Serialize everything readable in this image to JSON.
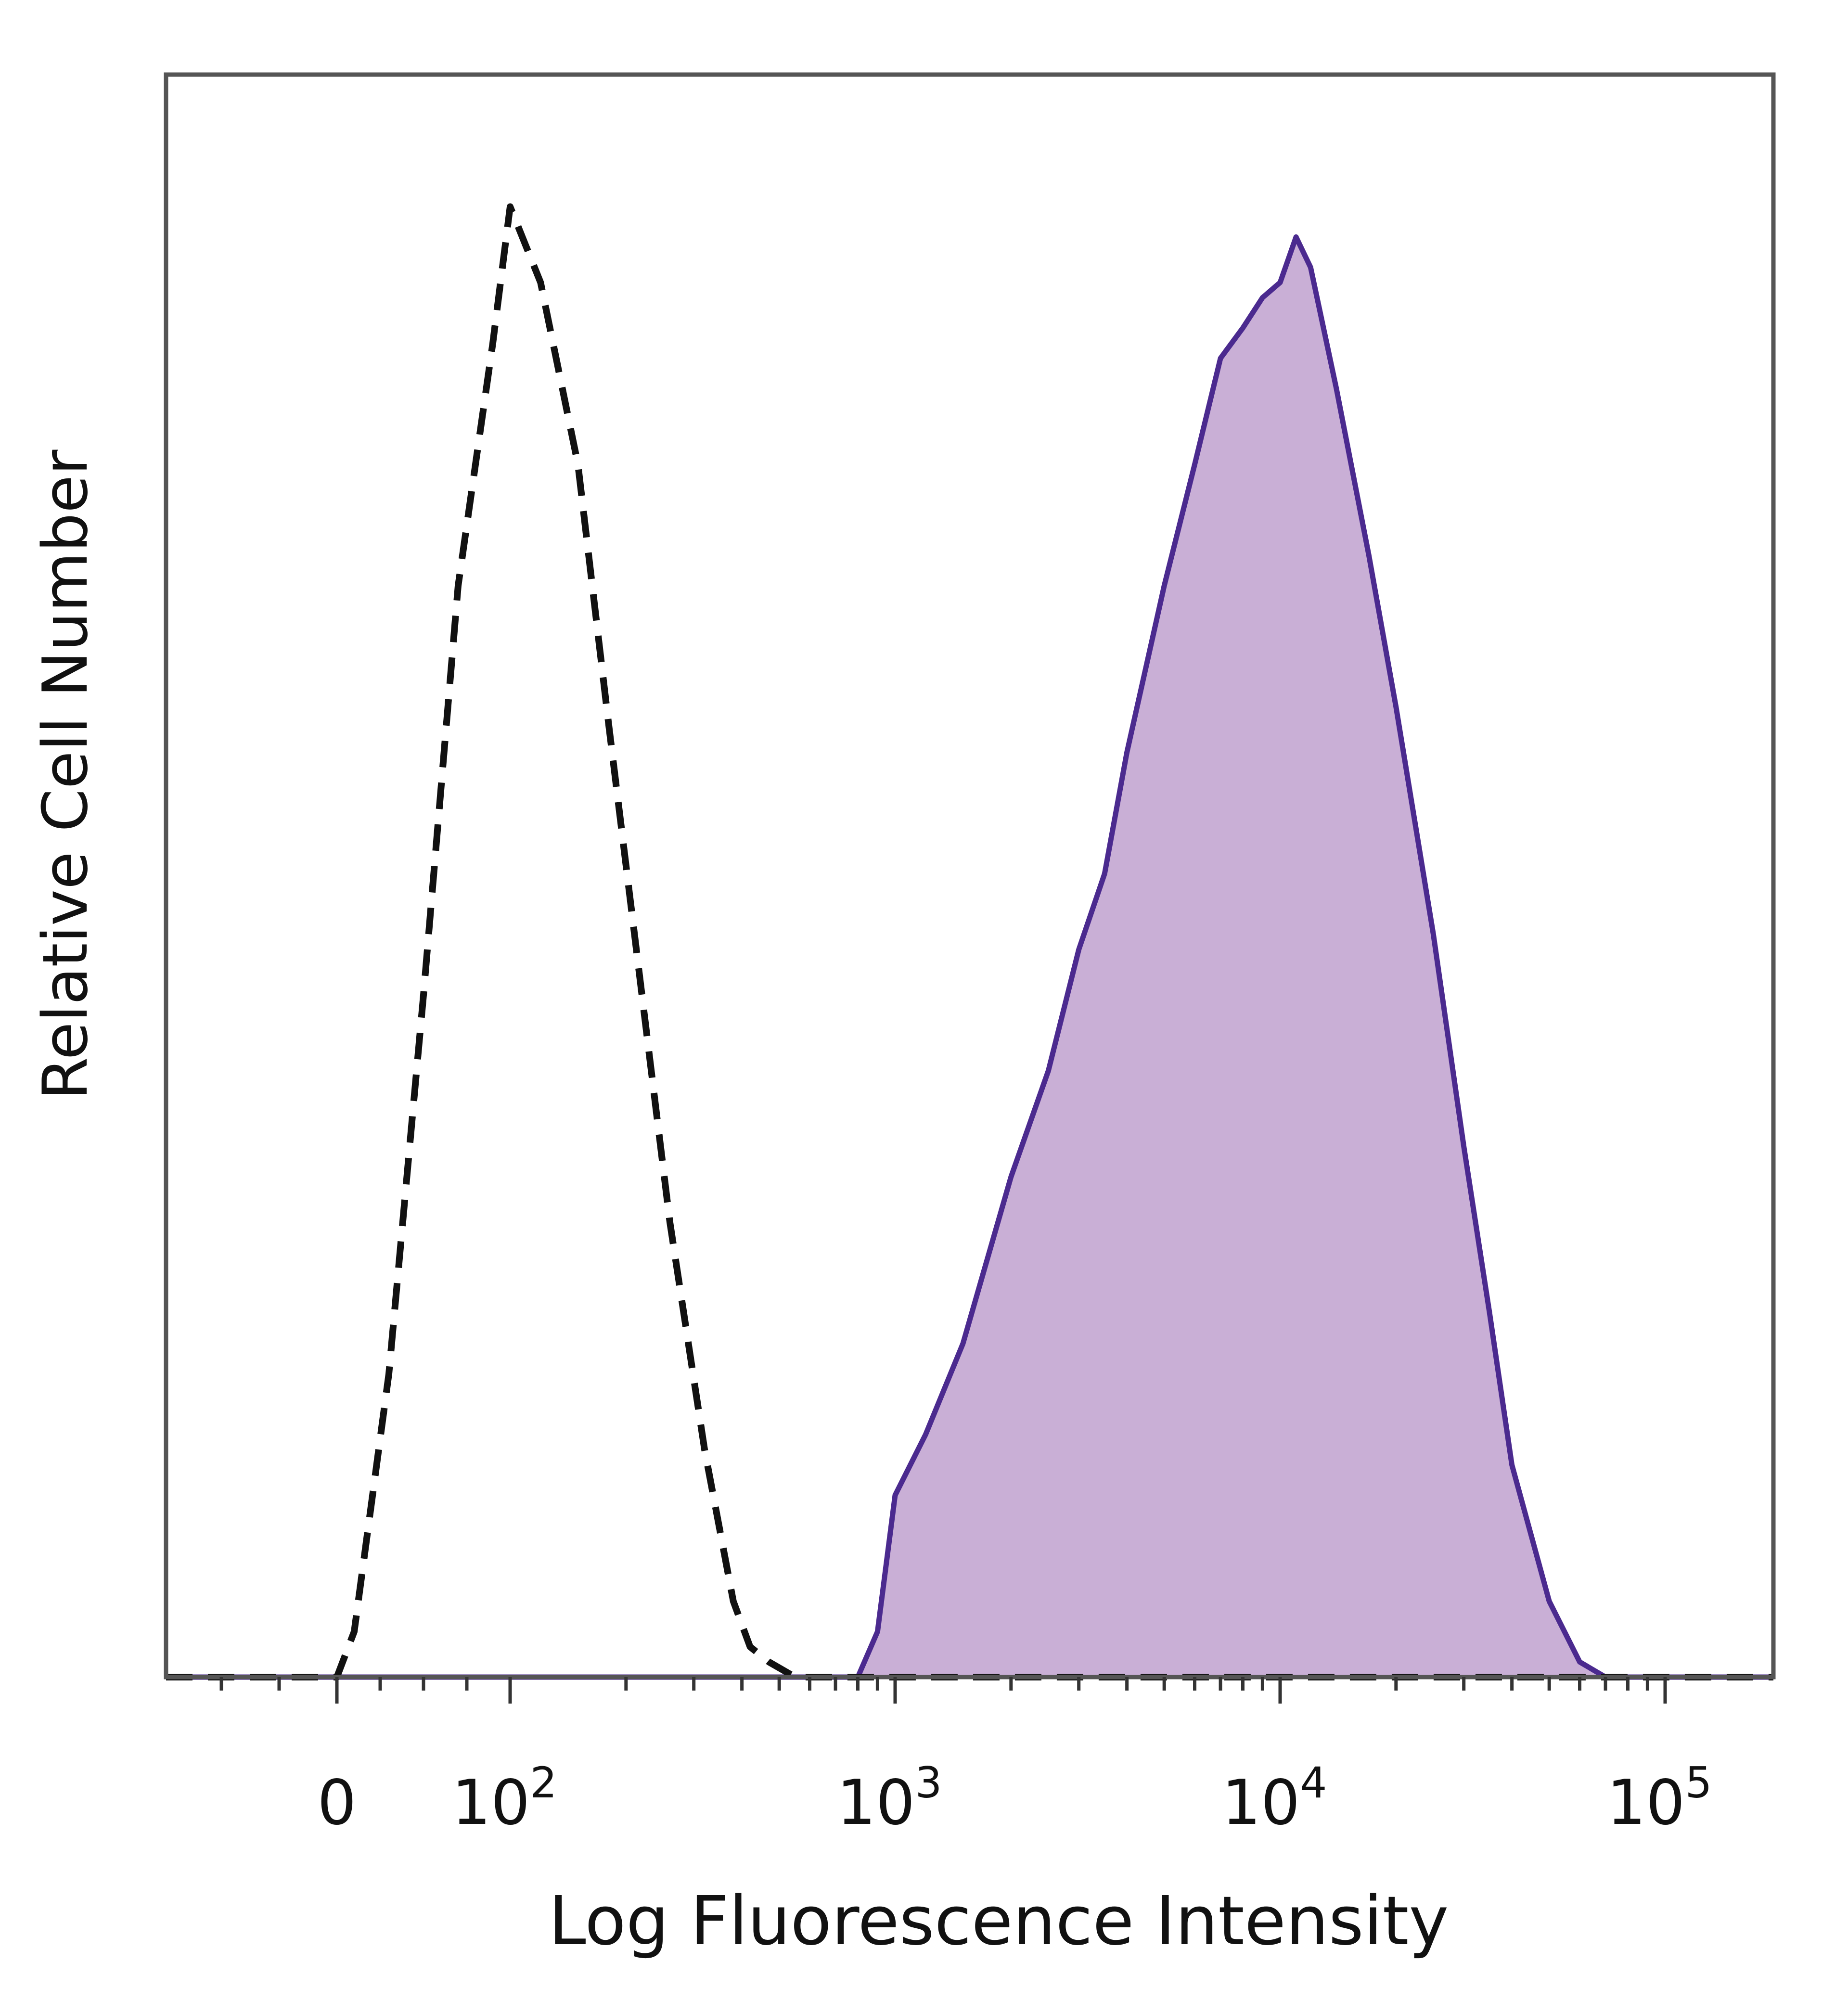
{
  "chart_data": {
    "type": "area",
    "title": "",
    "xlabel": "Log Fluorescence Intensity",
    "ylabel": "Relative Cell Number",
    "x_scale": "biexponential",
    "xlim": [
      -150,
      250000
    ],
    "ylim": [
      0,
      100
    ],
    "grid": false,
    "legend": "none",
    "x_tick_labels": [
      {
        "value": 0,
        "base": "0",
        "exp": ""
      },
      {
        "value": 100,
        "base": "10",
        "exp": "2"
      },
      {
        "value": 1000,
        "base": "10",
        "exp": "3"
      },
      {
        "value": 10000,
        "base": "10",
        "exp": "4"
      },
      {
        "value": 100000,
        "base": "10",
        "exp": "5"
      }
    ],
    "colors": {
      "isotype_line": "#111111",
      "stained_line": "#4b2a8f",
      "stained_fill": "#c9afd6"
    },
    "series": [
      {
        "style": "dashed",
        "filled": false,
        "x": [
          -150,
          0,
          10,
          30,
          50,
          70,
          90,
          100,
          120,
          150,
          180,
          220,
          260,
          320,
          380,
          420,
          470,
          550,
          700,
          1000,
          250000
        ],
        "y": [
          0,
          0,
          3,
          20,
          45,
          72,
          88,
          97,
          92,
          80,
          63,
          45,
          30,
          15,
          5,
          2,
          1,
          0,
          0,
          0,
          0
        ]
      },
      {
        "style": "solid",
        "filled": true,
        "x": [
          -150,
          800,
          900,
          1000,
          1200,
          1500,
          2000,
          2500,
          3000,
          3500,
          4000,
          5000,
          6000,
          7000,
          8000,
          9000,
          10000,
          11000,
          12000,
          14000,
          17000,
          20000,
          25000,
          30000,
          35000,
          40000,
          50000,
          60000,
          70000,
          250000
        ],
        "y": [
          0,
          0,
          3,
          12,
          16,
          22,
          33,
          40,
          48,
          53,
          61,
          72,
          80,
          87,
          89,
          91,
          92,
          95,
          93,
          85,
          74,
          64,
          49,
          35,
          24,
          14,
          5,
          1,
          0,
          0
        ]
      }
    ]
  }
}
